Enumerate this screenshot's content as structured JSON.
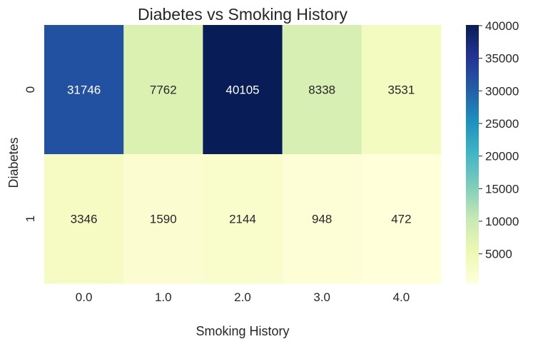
{
  "chart_data": {
    "type": "heatmap",
    "title": "Diabetes vs Smoking History",
    "xlabel": "Smoking History",
    "ylabel": "Diabetes",
    "x_categories": [
      "0.0",
      "1.0",
      "2.0",
      "3.0",
      "4.0"
    ],
    "y_categories": [
      "0",
      "1"
    ],
    "values": [
      [
        31746,
        7762,
        40105,
        8338,
        3531
      ],
      [
        3346,
        1590,
        2144,
        948,
        472
      ]
    ],
    "colormap": "YlGnBu",
    "colorbar": {
      "ticks": [
        5000,
        10000,
        15000,
        20000,
        25000,
        30000,
        35000,
        40000
      ],
      "tick_labels": [
        "5000",
        "10000",
        "15000",
        "20000",
        "25000",
        "30000",
        "35000",
        "40000"
      ]
    }
  }
}
